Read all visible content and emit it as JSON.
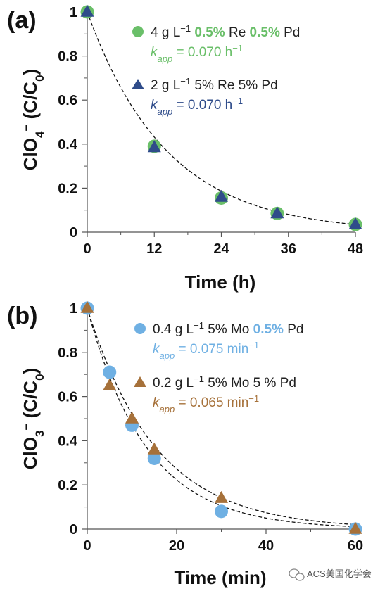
{
  "chart_data": [
    {
      "type": "scatter",
      "panel_label": "(a)",
      "xlabel": "Time (h)",
      "ylabel_parts": [
        "ClO",
        "4",
        "−",
        " (C/C",
        "0",
        ")"
      ],
      "xlim": [
        0,
        48
      ],
      "ylim": [
        0,
        1
      ],
      "xticks": [
        "0",
        "12",
        "24",
        "36",
        "48"
      ],
      "yticks": [
        "0",
        "0.2",
        "0.4",
        "0.6",
        "0.8",
        "1"
      ],
      "grid": false,
      "legend_position": "top-right",
      "series": [
        {
          "marker": "circle",
          "color": "#6abf69",
          "label_parts": [
            "4 g L",
            "−1",
            " ",
            "0.5%",
            " Re ",
            "0.5%",
            " Pd"
          ],
          "kapp_label": "k",
          "kapp_sub": "app",
          "kapp_value": " = 0.070 h",
          "kapp_unit_sup": "−1",
          "x": [
            0,
            12,
            24,
            34,
            48
          ],
          "y": [
            1.0,
            0.39,
            0.155,
            0.085,
            0.035
          ]
        },
        {
          "marker": "triangle",
          "color": "#2f4c8a",
          "label_parts": [
            "2 g L",
            "−1",
            " 5% Re 5% Pd"
          ],
          "kapp_label": "k",
          "kapp_sub": "app",
          "kapp_value": " = 0.070 h",
          "kapp_unit_sup": "−1",
          "x": [
            0,
            12,
            24,
            34,
            48
          ],
          "y": [
            1.0,
            0.385,
            0.16,
            0.085,
            0.035
          ]
        }
      ],
      "fits": [
        {
          "k": 0.07,
          "color": "#111"
        }
      ]
    },
    {
      "type": "scatter",
      "panel_label": "(b)",
      "xlabel": "Time (min)",
      "ylabel_parts": [
        "ClO",
        "3",
        "−",
        " (C/C",
        "0",
        ")"
      ],
      "xlim": [
        0,
        60
      ],
      "ylim": [
        0,
        1
      ],
      "xticks": [
        "0",
        "20",
        "40",
        "60"
      ],
      "yticks": [
        "0",
        "0.2",
        "0.4",
        "0.6",
        "0.8",
        "1"
      ],
      "grid": false,
      "legend_position": "top-right",
      "series": [
        {
          "marker": "circle",
          "color": "#6fb0e3",
          "label_parts": [
            "0.4 g L",
            "−1",
            " 5% Mo ",
            "0.5%",
            " Pd"
          ],
          "kapp_label": "k",
          "kapp_sub": "app",
          "kapp_value": " = 0.075 min",
          "kapp_unit_sup": "−1",
          "x": [
            0,
            5,
            10,
            15,
            30,
            60
          ],
          "y": [
            1.0,
            0.71,
            0.47,
            0.32,
            0.08,
            0.0
          ]
        },
        {
          "marker": "triangle",
          "color": "#a6713a",
          "label_parts": [
            "0.2 g L",
            "−1",
            " 5% Mo 5 % Pd"
          ],
          "kapp_label": "k",
          "kapp_sub": "app",
          "kapp_value": " = 0.065 min",
          "kapp_unit_sup": "−1",
          "x": [
            0,
            5,
            10,
            15,
            30,
            60
          ],
          "y": [
            1.0,
            0.65,
            0.5,
            0.36,
            0.14,
            0.0
          ]
        }
      ],
      "fits": [
        {
          "k": 0.075,
          "color": "#111"
        },
        {
          "k": 0.065,
          "color": "#111"
        }
      ]
    }
  ],
  "watermark": {
    "text": "ACS美国化学会",
    "icon": "wechat-icon"
  }
}
